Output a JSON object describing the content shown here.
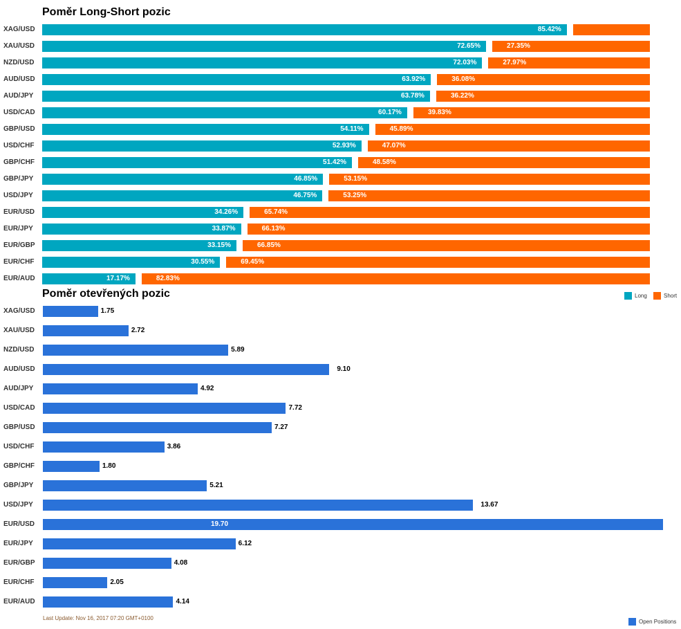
{
  "chart_data": [
    {
      "type": "bar",
      "stacked": true,
      "orientation": "horizontal",
      "title": "Poměr Long-Short pozic",
      "categories": [
        "XAG/USD",
        "XAU/USD",
        "NZD/USD",
        "AUD/USD",
        "AUD/JPY",
        "USD/CAD",
        "GBP/USD",
        "USD/CHF",
        "GBP/CHF",
        "GBP/JPY",
        "USD/JPY",
        "EUR/USD",
        "EUR/JPY",
        "EUR/GBP",
        "EUR/CHF",
        "EUR/AUD"
      ],
      "series": [
        {
          "name": "Long",
          "color": "#00a6c0",
          "values": [
            85.42,
            72.65,
            72.03,
            63.92,
            63.78,
            60.17,
            54.11,
            52.93,
            51.42,
            46.85,
            46.75,
            34.26,
            33.87,
            33.15,
            30.55,
            17.17
          ],
          "labels": [
            "85.42%",
            "72.65%",
            "72.03%",
            "63.92%",
            "63.78%",
            "60.17%",
            "54.11%",
            "52.93%",
            "51.42%",
            "46.85%",
            "46.75%",
            "34.26%",
            "33.87%",
            "33.15%",
            "30.55%",
            "17.17%"
          ]
        },
        {
          "name": "Short",
          "color": "#ff6600",
          "values": [
            14.58,
            27.35,
            27.97,
            36.08,
            36.22,
            39.83,
            45.89,
            47.07,
            48.58,
            53.15,
            53.25,
            65.74,
            66.13,
            66.85,
            69.45,
            82.83
          ],
          "labels": [
            "",
            "27.35%",
            "27.97%",
            "36.08%",
            "36.22%",
            "39.83%",
            "45.89%",
            "47.07%",
            "48.58%",
            "53.15%",
            "53.25%",
            "65.74%",
            "66.13%",
            "66.85%",
            "69.45%",
            "82.83%"
          ]
        }
      ],
      "legend": "top-right"
    },
    {
      "type": "bar",
      "orientation": "horizontal",
      "title": "Poměr otevřených pozic",
      "categories": [
        "XAG/USD",
        "XAU/USD",
        "NZD/USD",
        "AUD/USD",
        "AUD/JPY",
        "USD/CAD",
        "GBP/USD",
        "USD/CHF",
        "GBP/CHF",
        "GBP/JPY",
        "USD/JPY",
        "EUR/USD",
        "EUR/JPY",
        "EUR/GBP",
        "EUR/CHF",
        "EUR/AUD"
      ],
      "series": [
        {
          "name": "Open Positions",
          "color": "#2a72d9",
          "values": [
            1.75,
            2.72,
            5.89,
            9.1,
            4.92,
            7.72,
            7.27,
            3.86,
            1.8,
            5.21,
            13.67,
            19.7,
            6.12,
            4.08,
            2.05,
            4.14
          ],
          "labels": [
            "1.75",
            "2.72",
            "5.89",
            "9.10",
            "4.92",
            "7.72",
            "7.27",
            "3.86",
            "1.80",
            "5.21",
            "13.67",
            "19.70",
            "6.12",
            "4.08",
            "2.05",
            "4.14"
          ]
        }
      ],
      "legend": "bottom-right"
    }
  ],
  "footer": "Last Update: Nov 16, 2017 07:20 GMT+0100"
}
